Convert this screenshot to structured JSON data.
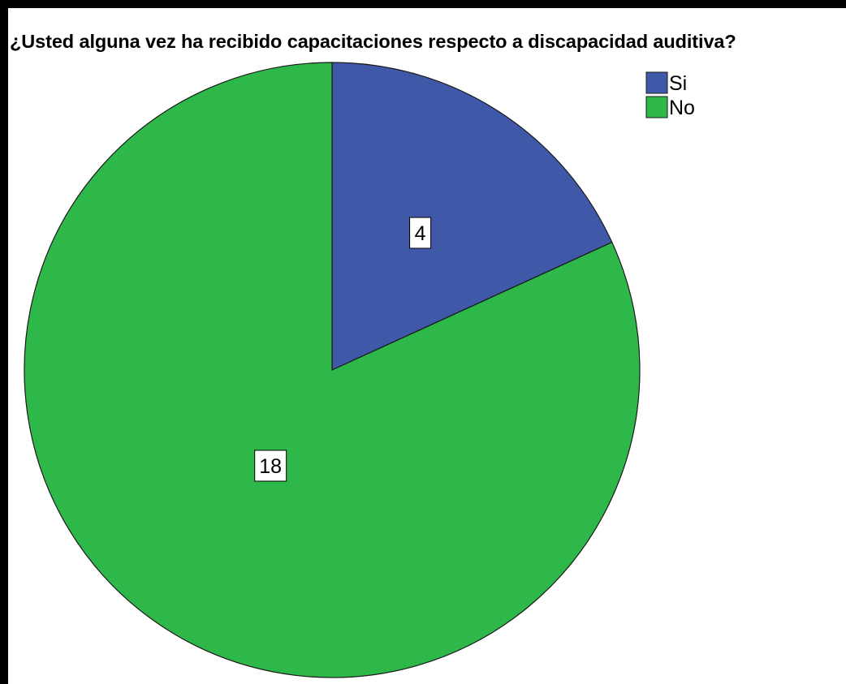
{
  "chart_data": {
    "type": "pie",
    "title": "¿Usted alguna vez ha recibido capacitaciones respecto a discapacidad auditiva?",
    "legend_position": "top-right",
    "start_angle_deg": 0,
    "direction": "clockwise",
    "categories": [
      "Si",
      "No"
    ],
    "values": [
      4,
      18
    ],
    "colors": [
      "#3f58a8",
      "#2fb84a"
    ],
    "data_labels": [
      "4",
      "18"
    ]
  }
}
